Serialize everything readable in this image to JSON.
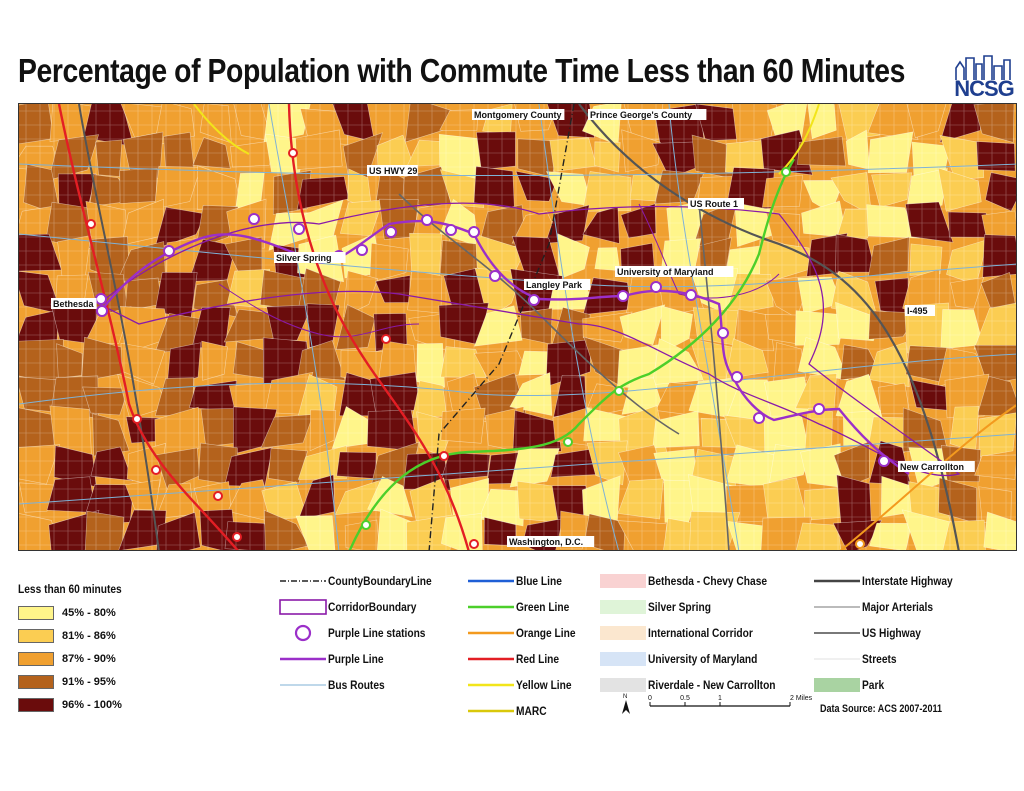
{
  "title": "Percentage of Population with Commute Time Less than 60 Minutes",
  "logo": {
    "text": "NCSG"
  },
  "map_labels": {
    "montgomery": "Montgomery County",
    "princegeorges": "Prince George's County",
    "ushwy29": "US HWY 29",
    "usroute1": "US Route 1",
    "silverspring": "Silver Spring",
    "bethesda": "Bethesda",
    "langleypark": "Langley Park",
    "umd": "University of Maryland",
    "i495": "I-495",
    "newcarrollton": "New Carrollton",
    "washington": "Washington, D.C."
  },
  "population_legend": {
    "title": "Less than 60 minutes",
    "classes": [
      {
        "label": "45% - 80%",
        "color": "#fff58a"
      },
      {
        "label": "81% - 86%",
        "color": "#fbcd52"
      },
      {
        "label": "87% - 90%",
        "color": "#f0a030"
      },
      {
        "label": "91% - 95%",
        "color": "#b4621c"
      },
      {
        "label": "96% - 100%",
        "color": "#6a0c0c"
      }
    ]
  },
  "legend_col1": [
    {
      "label": "CountyBoundaryLine",
      "symbol": "dashdot",
      "color": "#222222"
    },
    {
      "label": "CorridorBoundary",
      "symbol": "box",
      "color": "#8a1aa8"
    },
    {
      "label": "Purple Line stations",
      "symbol": "circle",
      "color": "#9b2fc9"
    },
    {
      "label": "Purple Line",
      "symbol": "line",
      "color": "#9b2fc9"
    },
    {
      "label": "Bus Routes",
      "symbol": "thin",
      "color": "#7fb2d6"
    }
  ],
  "legend_col2": [
    {
      "label": "Blue Line",
      "symbol": "line",
      "color": "#1f5fd6"
    },
    {
      "label": "Green Line",
      "symbol": "line",
      "color": "#4ccf2a"
    },
    {
      "label": "Orange Line",
      "symbol": "line",
      "color": "#f39a1e"
    },
    {
      "label": "Red Line",
      "symbol": "line",
      "color": "#e31e24"
    },
    {
      "label": "Yellow Line",
      "symbol": "line",
      "color": "#f2e51a"
    },
    {
      "label": "MARC",
      "symbol": "line",
      "color": "#d9c80a"
    }
  ],
  "legend_col3": [
    {
      "label": "Bethesda - Chevy Chase",
      "symbol": "fill",
      "color": "#f9d2d2"
    },
    {
      "label": "Silver Spring",
      "symbol": "fill",
      "color": "#dff4d8"
    },
    {
      "label": "International Corridor",
      "symbol": "fill",
      "color": "#fbe7cf"
    },
    {
      "label": "University of Maryland",
      "symbol": "fill",
      "color": "#d6e4f6"
    },
    {
      "label": "Riverdale - New Carrollton",
      "symbol": "fill",
      "color": "#e3e3e3"
    }
  ],
  "legend_col4": [
    {
      "label": "Interstate Highway",
      "symbol": "thick",
      "color": "#444444"
    },
    {
      "label": "Major Arterials",
      "symbol": "thin",
      "color": "#777777"
    },
    {
      "label": "US Highway",
      "symbol": "medium",
      "color": "#666666"
    },
    {
      "label": "Streets",
      "symbol": "thin",
      "color": "#e0e0e0"
    },
    {
      "label": "Park",
      "symbol": "fill",
      "color": "#a9d3a2"
    }
  ],
  "scale": {
    "north": "N",
    "ticks": [
      "0",
      "0.5",
      "1",
      "2 Miles"
    ]
  },
  "source": "Data Source: ACS 2007-2011"
}
